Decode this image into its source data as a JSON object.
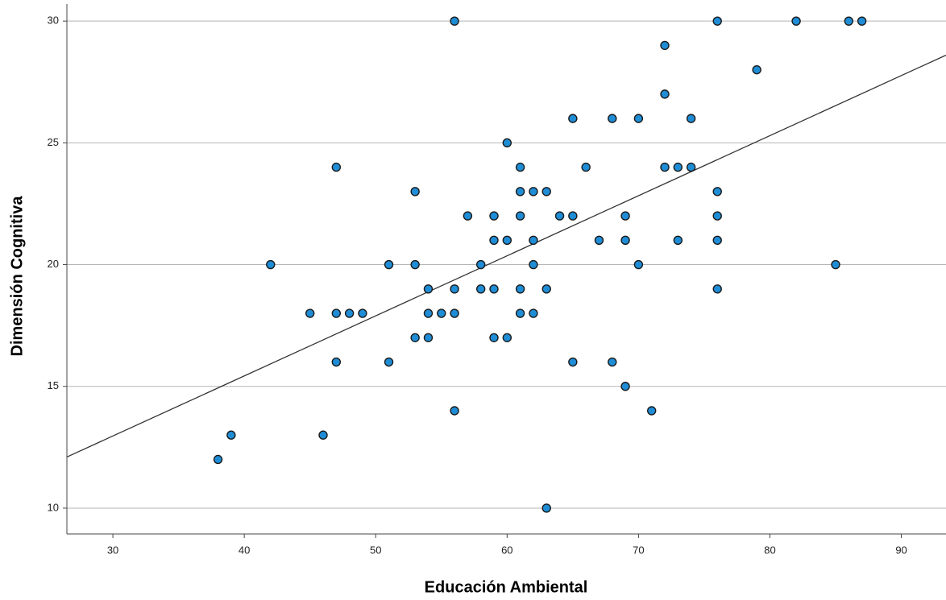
{
  "chart_data": {
    "type": "scatter",
    "x_label": "Educación Ambiental",
    "y_label": "Dimensión Cognitiva",
    "x": [
      56,
      76,
      82,
      86,
      87,
      72,
      79,
      72,
      65,
      68,
      70,
      74,
      60,
      47,
      61,
      66,
      72,
      73,
      74,
      53,
      61,
      62,
      63,
      76,
      57,
      59,
      61,
      64,
      65,
      69,
      76,
      59,
      60,
      62,
      67,
      69,
      73,
      76,
      42,
      51,
      53,
      58,
      62,
      70,
      85,
      54,
      56,
      58,
      59,
      61,
      63,
      76,
      45,
      47,
      48,
      49,
      54,
      55,
      56,
      61,
      62,
      53,
      54,
      59,
      60,
      47,
      51,
      65,
      68,
      69,
      56,
      71,
      39,
      46,
      38,
      63
    ],
    "values": [
      30,
      30,
      30,
      30,
      30,
      29,
      28,
      27,
      26,
      26,
      26,
      26,
      25,
      24,
      24,
      24,
      24,
      24,
      24,
      23,
      23,
      23,
      23,
      23,
      22,
      22,
      22,
      22,
      22,
      22,
      22,
      21,
      21,
      21,
      21,
      21,
      21,
      21,
      20,
      20,
      20,
      20,
      20,
      20,
      20,
      19,
      19,
      19,
      19,
      19,
      19,
      19,
      18,
      18,
      18,
      18,
      18,
      18,
      18,
      18,
      18,
      17,
      17,
      17,
      17,
      16,
      16,
      16,
      16,
      15,
      14,
      14,
      13,
      13,
      12,
      10
    ],
    "color": "#1f8dd6",
    "fit_line": {
      "x": [
        26.5,
        93.4
      ],
      "y": [
        12.1,
        28.6
      ],
      "color": "#333333"
    },
    "xlim": [
      26.5,
      93.4
    ],
    "xticks": [
      30,
      40,
      50,
      60,
      70,
      80,
      90
    ],
    "ylim": [
      8.94,
      30.7
    ],
    "yticks": [
      10,
      15,
      20,
      25,
      30
    ],
    "grid": true
  }
}
